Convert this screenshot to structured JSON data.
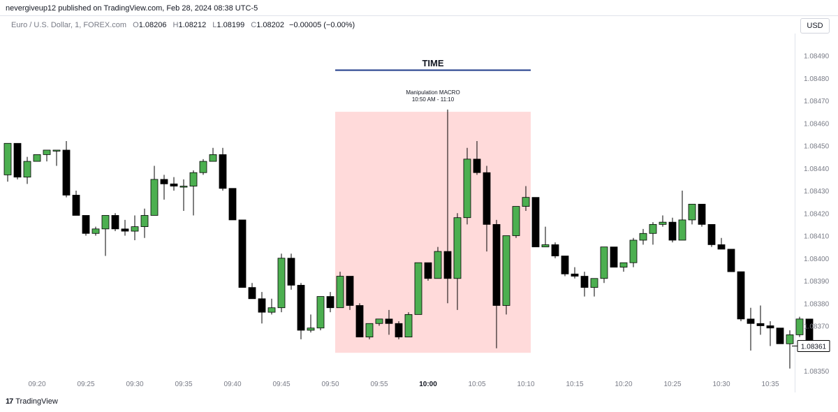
{
  "header": {
    "published": "nevergiveup12 published on TradingView.com, Feb 28, 2024 08:38 UTC-5"
  },
  "legend": {
    "symbol": "Euro / U.S. Dollar, 1, FOREX.com",
    "o_label": "O",
    "o_value": "1.08206",
    "h_label": "H",
    "h_value": "1.08212",
    "l_label": "L",
    "l_value": "1.08199",
    "c_label": "C",
    "c_value": "1.08202",
    "change": "−0.00005 (−0.00%)"
  },
  "currency": "USD",
  "footer": {
    "brand": "TradingView",
    "logo": "17"
  },
  "colors": {
    "up": "#4caf50",
    "down": "#000000",
    "highlight": "#ffd6d6",
    "time_line": "#1e3a8a",
    "price_label_bg": "#ffffff"
  },
  "annotations": {
    "time_title": "TIME",
    "macro_title": "Manipulation MACRO",
    "macro_range": "10:50 AM - 11:10"
  },
  "chart_data": {
    "type": "candlestick",
    "ylim": [
      1.08345,
      1.08495
    ],
    "y_ticks": [
      "1.08490",
      "1.08480",
      "1.08470",
      "1.08460",
      "1.08450",
      "1.08440",
      "1.08430",
      "1.08420",
      "1.08410",
      "1.08400",
      "1.08390",
      "1.08380",
      "1.08370",
      "1.08360",
      "1.08350"
    ],
    "x_ticks": [
      {
        "label": "09:20",
        "bar": 3,
        "bold": false
      },
      {
        "label": "09:25",
        "bar": 8,
        "bold": false
      },
      {
        "label": "09:30",
        "bar": 13,
        "bold": false
      },
      {
        "label": "09:35",
        "bar": 18,
        "bold": false
      },
      {
        "label": "09:40",
        "bar": 23,
        "bold": false
      },
      {
        "label": "09:45",
        "bar": 28,
        "bold": false
      },
      {
        "label": "09:50",
        "bar": 33,
        "bold": false
      },
      {
        "label": "09:55",
        "bar": 38,
        "bold": false
      },
      {
        "label": "10:00",
        "bar": 43,
        "bold": true
      },
      {
        "label": "10:05",
        "bar": 48,
        "bold": false
      },
      {
        "label": "10:10",
        "bar": 53,
        "bold": false
      },
      {
        "label": "10:15",
        "bar": 58,
        "bold": false
      },
      {
        "label": "10:20",
        "bar": 63,
        "bold": false
      },
      {
        "label": "10:25",
        "bar": 68,
        "bold": false
      },
      {
        "label": "10:30",
        "bar": 73,
        "bold": false
      },
      {
        "label": "10:35",
        "bar": 78,
        "bold": false
      }
    ],
    "highlight_range_bars": [
      33.5,
      53.5
    ],
    "highlight_price_range": [
      1.08358,
      1.08465
    ],
    "last_price": "1.08361",
    "last_price_value": 1.08361,
    "candles": [
      {
        "o": 1.08437,
        "h": 1.08451,
        "l": 1.08434,
        "c": 1.08451
      },
      {
        "o": 1.08451,
        "h": 1.08451,
        "l": 1.08435,
        "c": 1.08436
      },
      {
        "o": 1.08436,
        "h": 1.08445,
        "l": 1.08433,
        "c": 1.08443
      },
      {
        "o": 1.08443,
        "h": 1.08446,
        "l": 1.08443,
        "c": 1.08446
      },
      {
        "o": 1.08446,
        "h": 1.08448,
        "l": 1.08443,
        "c": 1.08448
      },
      {
        "o": 1.08448,
        "h": 1.08448,
        "l": 1.08441,
        "c": 1.08448
      },
      {
        "o": 1.08448,
        "h": 1.08452,
        "l": 1.08427,
        "c": 1.08428
      },
      {
        "o": 1.08428,
        "h": 1.0843,
        "l": 1.08419,
        "c": 1.08419
      },
      {
        "o": 1.08419,
        "h": 1.08419,
        "l": 1.0841,
        "c": 1.08411
      },
      {
        "o": 1.08411,
        "h": 1.08414,
        "l": 1.0841,
        "c": 1.08413
      },
      {
        "o": 1.08413,
        "h": 1.08419,
        "l": 1.08401,
        "c": 1.08419
      },
      {
        "o": 1.08419,
        "h": 1.0842,
        "l": 1.08412,
        "c": 1.08413
      },
      {
        "o": 1.08413,
        "h": 1.08417,
        "l": 1.0841,
        "c": 1.08412
      },
      {
        "o": 1.08412,
        "h": 1.08419,
        "l": 1.08408,
        "c": 1.08414
      },
      {
        "o": 1.08414,
        "h": 1.08422,
        "l": 1.08409,
        "c": 1.08419
      },
      {
        "o": 1.08419,
        "h": 1.08441,
        "l": 1.08419,
        "c": 1.08435
      },
      {
        "o": 1.08435,
        "h": 1.08437,
        "l": 1.08426,
        "c": 1.08433
      },
      {
        "o": 1.08433,
        "h": 1.08436,
        "l": 1.0843,
        "c": 1.08432
      },
      {
        "o": 1.08432,
        "h": 1.08435,
        "l": 1.08421,
        "c": 1.08432
      },
      {
        "o": 1.08432,
        "h": 1.08439,
        "l": 1.08419,
        "c": 1.08438
      },
      {
        "o": 1.08438,
        "h": 1.08444,
        "l": 1.08437,
        "c": 1.08443
      },
      {
        "o": 1.08443,
        "h": 1.08449,
        "l": 1.08443,
        "c": 1.08446
      },
      {
        "o": 1.08446,
        "h": 1.08449,
        "l": 1.0843,
        "c": 1.08431
      },
      {
        "o": 1.08431,
        "h": 1.08431,
        "l": 1.08417,
        "c": 1.08417
      },
      {
        "o": 1.08417,
        "h": 1.08417,
        "l": 1.08387,
        "c": 1.08387
      },
      {
        "o": 1.08387,
        "h": 1.08389,
        "l": 1.08382,
        "c": 1.08382
      },
      {
        "o": 1.08382,
        "h": 1.08385,
        "l": 1.08371,
        "c": 1.08376
      },
      {
        "o": 1.08376,
        "h": 1.08382,
        "l": 1.08375,
        "c": 1.08378
      },
      {
        "o": 1.08378,
        "h": 1.08402,
        "l": 1.08376,
        "c": 1.084
      },
      {
        "o": 1.084,
        "h": 1.08402,
        "l": 1.08386,
        "c": 1.08388
      },
      {
        "o": 1.08388,
        "h": 1.08389,
        "l": 1.08364,
        "c": 1.08368
      },
      {
        "o": 1.08368,
        "h": 1.08375,
        "l": 1.08367,
        "c": 1.08369
      },
      {
        "o": 1.08369,
        "h": 1.08383,
        "l": 1.08368,
        "c": 1.08383
      },
      {
        "o": 1.08383,
        "h": 1.08385,
        "l": 1.08376,
        "c": 1.08378
      },
      {
        "o": 1.08378,
        "h": 1.08394,
        "l": 1.08378,
        "c": 1.08392
      },
      {
        "o": 1.08392,
        "h": 1.08392,
        "l": 1.08377,
        "c": 1.08379
      },
      {
        "o": 1.08379,
        "h": 1.0838,
        "l": 1.08365,
        "c": 1.08365
      },
      {
        "o": 1.08365,
        "h": 1.08371,
        "l": 1.08364,
        "c": 1.08371
      },
      {
        "o": 1.08371,
        "h": 1.08373,
        "l": 1.0837,
        "c": 1.08373
      },
      {
        "o": 1.08373,
        "h": 1.08377,
        "l": 1.08366,
        "c": 1.08371
      },
      {
        "o": 1.08371,
        "h": 1.08372,
        "l": 1.08364,
        "c": 1.08365
      },
      {
        "o": 1.08365,
        "h": 1.08376,
        "l": 1.08365,
        "c": 1.08375
      },
      {
        "o": 1.08375,
        "h": 1.08398,
        "l": 1.08375,
        "c": 1.08398
      },
      {
        "o": 1.08398,
        "h": 1.08398,
        "l": 1.0839,
        "c": 1.08391
      },
      {
        "o": 1.08391,
        "h": 1.08405,
        "l": 1.08391,
        "c": 1.08403
      },
      {
        "o": 1.08403,
        "h": 1.08466,
        "l": 1.0838,
        "c": 1.08391
      },
      {
        "o": 1.08391,
        "h": 1.0842,
        "l": 1.08377,
        "c": 1.08418
      },
      {
        "o": 1.08418,
        "h": 1.08449,
        "l": 1.08415,
        "c": 1.08444
      },
      {
        "o": 1.08444,
        "h": 1.08452,
        "l": 1.08437,
        "c": 1.08438
      },
      {
        "o": 1.08438,
        "h": 1.08441,
        "l": 1.08403,
        "c": 1.08415
      },
      {
        "o": 1.08415,
        "h": 1.08417,
        "l": 1.0836,
        "c": 1.08379
      },
      {
        "o": 1.08379,
        "h": 1.0841,
        "l": 1.08375,
        "c": 1.0841
      },
      {
        "o": 1.0841,
        "h": 1.08423,
        "l": 1.08409,
        "c": 1.08423
      },
      {
        "o": 1.08423,
        "h": 1.08432,
        "l": 1.08421,
        "c": 1.08427
      },
      {
        "o": 1.08427,
        "h": 1.08427,
        "l": 1.08405,
        "c": 1.08405
      },
      {
        "o": 1.08405,
        "h": 1.08414,
        "l": 1.08405,
        "c": 1.08406
      },
      {
        "o": 1.08406,
        "h": 1.08407,
        "l": 1.084,
        "c": 1.08401
      },
      {
        "o": 1.08401,
        "h": 1.08401,
        "l": 1.08392,
        "c": 1.08393
      },
      {
        "o": 1.08393,
        "h": 1.08396,
        "l": 1.08391,
        "c": 1.08392
      },
      {
        "o": 1.08392,
        "h": 1.08394,
        "l": 1.08383,
        "c": 1.08387
      },
      {
        "o": 1.08387,
        "h": 1.08391,
        "l": 1.08383,
        "c": 1.08391
      },
      {
        "o": 1.08391,
        "h": 1.08405,
        "l": 1.08389,
        "c": 1.08405
      },
      {
        "o": 1.08405,
        "h": 1.08405,
        "l": 1.08396,
        "c": 1.08396
      },
      {
        "o": 1.08396,
        "h": 1.08398,
        "l": 1.08394,
        "c": 1.08398
      },
      {
        "o": 1.08398,
        "h": 1.08409,
        "l": 1.08396,
        "c": 1.08408
      },
      {
        "o": 1.08408,
        "h": 1.08413,
        "l": 1.08406,
        "c": 1.08411
      },
      {
        "o": 1.08411,
        "h": 1.08416,
        "l": 1.08406,
        "c": 1.08415
      },
      {
        "o": 1.08415,
        "h": 1.08419,
        "l": 1.08414,
        "c": 1.08416
      },
      {
        "o": 1.08416,
        "h": 1.08418,
        "l": 1.08407,
        "c": 1.08408
      },
      {
        "o": 1.08408,
        "h": 1.0843,
        "l": 1.08408,
        "c": 1.08417
      },
      {
        "o": 1.08417,
        "h": 1.08424,
        "l": 1.08415,
        "c": 1.08424
      },
      {
        "o": 1.08424,
        "h": 1.08424,
        "l": 1.08414,
        "c": 1.08415
      },
      {
        "o": 1.08415,
        "h": 1.08415,
        "l": 1.08405,
        "c": 1.08406
      },
      {
        "o": 1.08406,
        "h": 1.08409,
        "l": 1.08404,
        "c": 1.08404
      },
      {
        "o": 1.08404,
        "h": 1.08404,
        "l": 1.08394,
        "c": 1.08394
      },
      {
        "o": 1.08394,
        "h": 1.08394,
        "l": 1.08372,
        "c": 1.08373
      },
      {
        "o": 1.08373,
        "h": 1.08378,
        "l": 1.08359,
        "c": 1.08371
      },
      {
        "o": 1.08371,
        "h": 1.08379,
        "l": 1.08366,
        "c": 1.0837
      },
      {
        "o": 1.0837,
        "h": 1.08372,
        "l": 1.08361,
        "c": 1.08369
      },
      {
        "o": 1.08369,
        "h": 1.08369,
        "l": 1.08363,
        "c": 1.08362
      },
      {
        "o": 1.08362,
        "h": 1.08368,
        "l": 1.08351,
        "c": 1.08366
      },
      {
        "o": 1.08366,
        "h": 1.08374,
        "l": 1.08365,
        "c": 1.08373
      },
      {
        "o": 1.08373,
        "h": 1.08373,
        "l": 1.08362,
        "c": 1.08362
      }
    ]
  }
}
